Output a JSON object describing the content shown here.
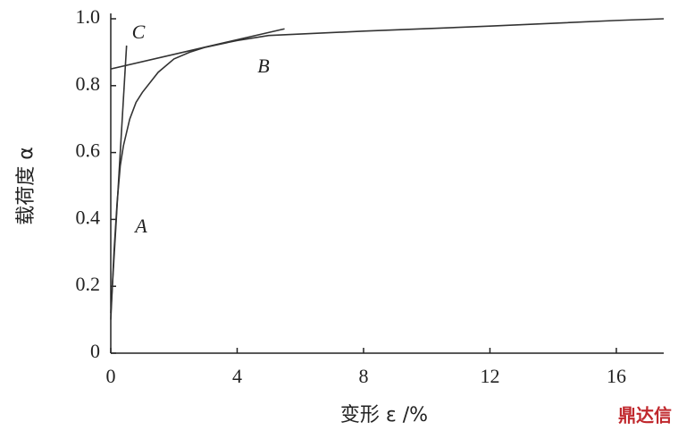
{
  "chart_data": {
    "type": "line",
    "ylabel": "载荷度 α",
    "xlabel": "变形 ε /%",
    "xlim": [
      0,
      17.5
    ],
    "xticks": [
      0,
      4,
      8,
      12,
      16
    ],
    "ylim": [
      0,
      1
    ],
    "yticks": [
      0,
      0.2,
      0.4,
      0.6,
      0.8,
      {
        "value": 1,
        "label": "1.0"
      }
    ],
    "series": [
      {
        "color": "#333333",
        "x": [
          0,
          0.1,
          0.2,
          0.3,
          0.4,
          0.6,
          0.8,
          1,
          1.5,
          2,
          2.5,
          3,
          4,
          5,
          8,
          12,
          16,
          17.5
        ],
        "values": [
          0.1,
          0.3,
          0.45,
          0.56,
          0.62,
          0.7,
          0.75,
          0.78,
          0.84,
          0.88,
          0.9,
          0.915,
          0.935,
          0.95,
          0.963,
          0.978,
          0.995,
          1
        ]
      },
      {
        "color": "#333333",
        "x": [
          0,
          0.5
        ],
        "values": [
          0.12,
          0.92
        ]
      },
      {
        "color": "#333333",
        "x": [
          0,
          5.5
        ],
        "values": [
          0.85,
          0.97
        ]
      }
    ],
    "annotations": [
      "A",
      "B",
      "C"
    ],
    "watermark": "鼎达信"
  }
}
